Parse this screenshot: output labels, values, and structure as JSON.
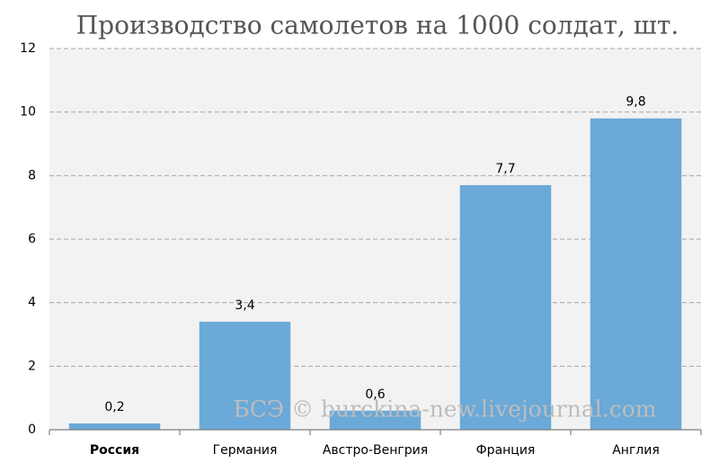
{
  "chart_data": {
    "type": "bar",
    "title": "Производство самолетов на 1000 солдат, шт.",
    "categories": [
      "Россия",
      "Германия",
      "Австро-Венгрия",
      "Франция",
      "Англия"
    ],
    "values": [
      0.2,
      3.4,
      0.6,
      7.7,
      9.8
    ],
    "value_labels": [
      "0,2",
      "3,4",
      "0,6",
      "7,7",
      "9,8"
    ],
    "color": "#6aa9d8",
    "ylim": [
      0,
      12
    ],
    "yticks": [
      0,
      2,
      4,
      6,
      8,
      10,
      12
    ],
    "grid": true,
    "annotation": "БСЭ © burckina-new.livejournal.com"
  }
}
